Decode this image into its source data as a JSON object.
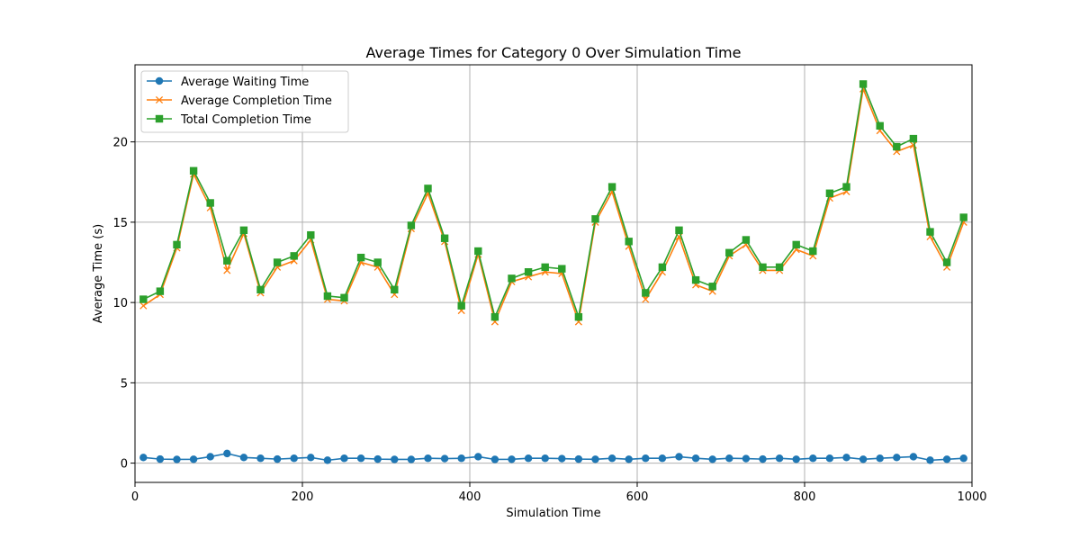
{
  "chart_data": {
    "type": "line",
    "title": "Average Times for Category 0 Over Simulation Time",
    "xlabel": "Simulation Time",
    "ylabel": "Average Time (s)",
    "xlim": [
      0,
      1000
    ],
    "ylim": [
      -1.2,
      24.8
    ],
    "xticks": [
      0,
      200,
      400,
      600,
      800,
      1000
    ],
    "yticks": [
      0,
      5,
      10,
      15,
      20
    ],
    "grid": true,
    "legend_position": "top-left",
    "x": [
      10,
      30,
      50,
      70,
      90,
      110,
      130,
      150,
      170,
      190,
      210,
      230,
      250,
      270,
      290,
      310,
      330,
      350,
      370,
      390,
      410,
      430,
      450,
      470,
      490,
      510,
      530,
      550,
      570,
      590,
      610,
      630,
      650,
      670,
      690,
      710,
      730,
      750,
      770,
      790,
      810,
      830,
      850,
      870,
      890,
      910,
      930,
      950,
      970,
      990
    ],
    "series": [
      {
        "name": "Average Waiting Time",
        "color": "#1f77b4",
        "marker": "circle",
        "values": [
          0.35,
          0.25,
          0.23,
          0.24,
          0.4,
          0.6,
          0.35,
          0.3,
          0.25,
          0.3,
          0.35,
          0.18,
          0.3,
          0.3,
          0.25,
          0.23,
          0.23,
          0.3,
          0.28,
          0.3,
          0.4,
          0.23,
          0.24,
          0.3,
          0.3,
          0.28,
          0.25,
          0.24,
          0.3,
          0.24,
          0.3,
          0.3,
          0.4,
          0.3,
          0.24,
          0.3,
          0.28,
          0.25,
          0.3,
          0.24,
          0.3,
          0.3,
          0.35,
          0.24,
          0.3,
          0.35,
          0.4,
          0.18,
          0.24,
          0.3
        ]
      },
      {
        "name": "Average Completion Time",
        "color": "#ff7f0e",
        "marker": "x",
        "values": [
          9.8,
          10.5,
          13.4,
          18.0,
          15.9,
          12.0,
          14.3,
          10.6,
          12.2,
          12.6,
          13.9,
          10.2,
          10.1,
          12.5,
          12.2,
          10.5,
          14.6,
          16.8,
          13.8,
          9.5,
          13.0,
          8.8,
          11.3,
          11.6,
          11.9,
          11.8,
          8.8,
          15.0,
          16.9,
          13.5,
          10.2,
          11.9,
          14.1,
          11.1,
          10.7,
          12.9,
          13.6,
          12.0,
          12.0,
          13.3,
          12.9,
          16.5,
          16.9,
          23.3,
          20.7,
          19.4,
          19.8,
          14.1,
          12.2,
          15.0
        ]
      },
      {
        "name": "Total Completion Time",
        "color": "#2ca02c",
        "marker": "square",
        "values": [
          10.2,
          10.7,
          13.6,
          18.2,
          16.2,
          12.6,
          14.5,
          10.8,
          12.5,
          12.9,
          14.2,
          10.4,
          10.3,
          12.8,
          12.5,
          10.8,
          14.8,
          17.1,
          14.0,
          9.8,
          13.2,
          9.1,
          11.5,
          11.9,
          12.2,
          12.1,
          9.1,
          15.2,
          17.2,
          13.8,
          10.6,
          12.2,
          14.5,
          11.4,
          11.0,
          13.1,
          13.9,
          12.2,
          12.2,
          13.6,
          13.2,
          16.8,
          17.2,
          23.6,
          21.0,
          19.7,
          20.2,
          14.4,
          12.5,
          15.3
        ]
      }
    ]
  }
}
